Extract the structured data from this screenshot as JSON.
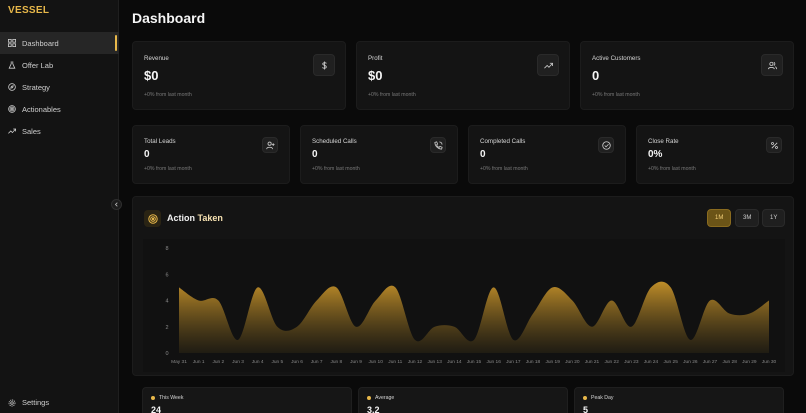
{
  "brand": "VESSEL",
  "sidebar": {
    "items": [
      {
        "label": "Dashboard",
        "icon": "grid-icon",
        "active": true
      },
      {
        "label": "Offer Lab",
        "icon": "flask-icon"
      },
      {
        "label": "Strategy",
        "icon": "compass-icon"
      },
      {
        "label": "Actionables",
        "icon": "target-icon"
      },
      {
        "label": "Sales",
        "icon": "trending-up-icon"
      }
    ],
    "settings_label": "Settings"
  },
  "page_title": "Dashboard",
  "top_cards": [
    {
      "label": "Revenue",
      "value": "$0",
      "sub": "+0% from last month",
      "icon": "dollar-icon"
    },
    {
      "label": "Profit",
      "value": "$0",
      "sub": "+0% from last month",
      "icon": "trending-up-icon"
    },
    {
      "label": "Active Customers",
      "value": "0",
      "sub": "+0% from last month",
      "icon": "users-icon"
    }
  ],
  "mid_cards": [
    {
      "label": "Total Leads",
      "value": "0",
      "sub": "+0% from last month",
      "icon": "user-plus-icon"
    },
    {
      "label": "Scheduled Calls",
      "value": "0",
      "sub": "+0% from last month",
      "icon": "phone-icon"
    },
    {
      "label": "Completed Calls",
      "value": "0",
      "sub": "+0% from last month",
      "icon": "check-circle-icon"
    },
    {
      "label": "Close Rate",
      "value": "0%",
      "sub": "+0% from last month",
      "icon": "percent-icon"
    }
  ],
  "chart_panel": {
    "title_a": "Action",
    "title_b": "Taken",
    "ranges": [
      "1M",
      "3M",
      "1Y"
    ],
    "active_range": "1M"
  },
  "chart_data": {
    "type": "area",
    "categories": [
      "May 31",
      "Jun 1",
      "Jun 2",
      "Jun 3",
      "Jun 4",
      "Jun 5",
      "Jun 6",
      "Jun 7",
      "Jun 8",
      "Jun 9",
      "Jun 10",
      "Jun 11",
      "Jun 12",
      "Jun 13",
      "Jun 14",
      "Jun 15",
      "Jun 16",
      "Jun 17",
      "Jun 18",
      "Jun 19",
      "Jun 20",
      "Jun 21",
      "Jun 22",
      "Jun 23",
      "Jun 24",
      "Jun 25",
      "Jun 26",
      "Jun 27",
      "Jun 28",
      "Jun 29",
      "Jun 30"
    ],
    "values": [
      5,
      4,
      4,
      1,
      5,
      2,
      2,
      4,
      5,
      2,
      4,
      5,
      1,
      2,
      2,
      1,
      5,
      1,
      3,
      5,
      4,
      2,
      4,
      2,
      5,
      5,
      1,
      4,
      3,
      3,
      4
    ],
    "yticks": [
      0,
      2,
      4,
      6,
      8
    ],
    "ylim": [
      0,
      8
    ],
    "colors": {
      "area_top": "#c8942a",
      "area_bottom": "#2a2414"
    }
  },
  "stats": [
    {
      "label": "This Week",
      "value": "24"
    },
    {
      "label": "Average",
      "value": "3.2"
    },
    {
      "label": "Peak Day",
      "value": "5"
    }
  ]
}
